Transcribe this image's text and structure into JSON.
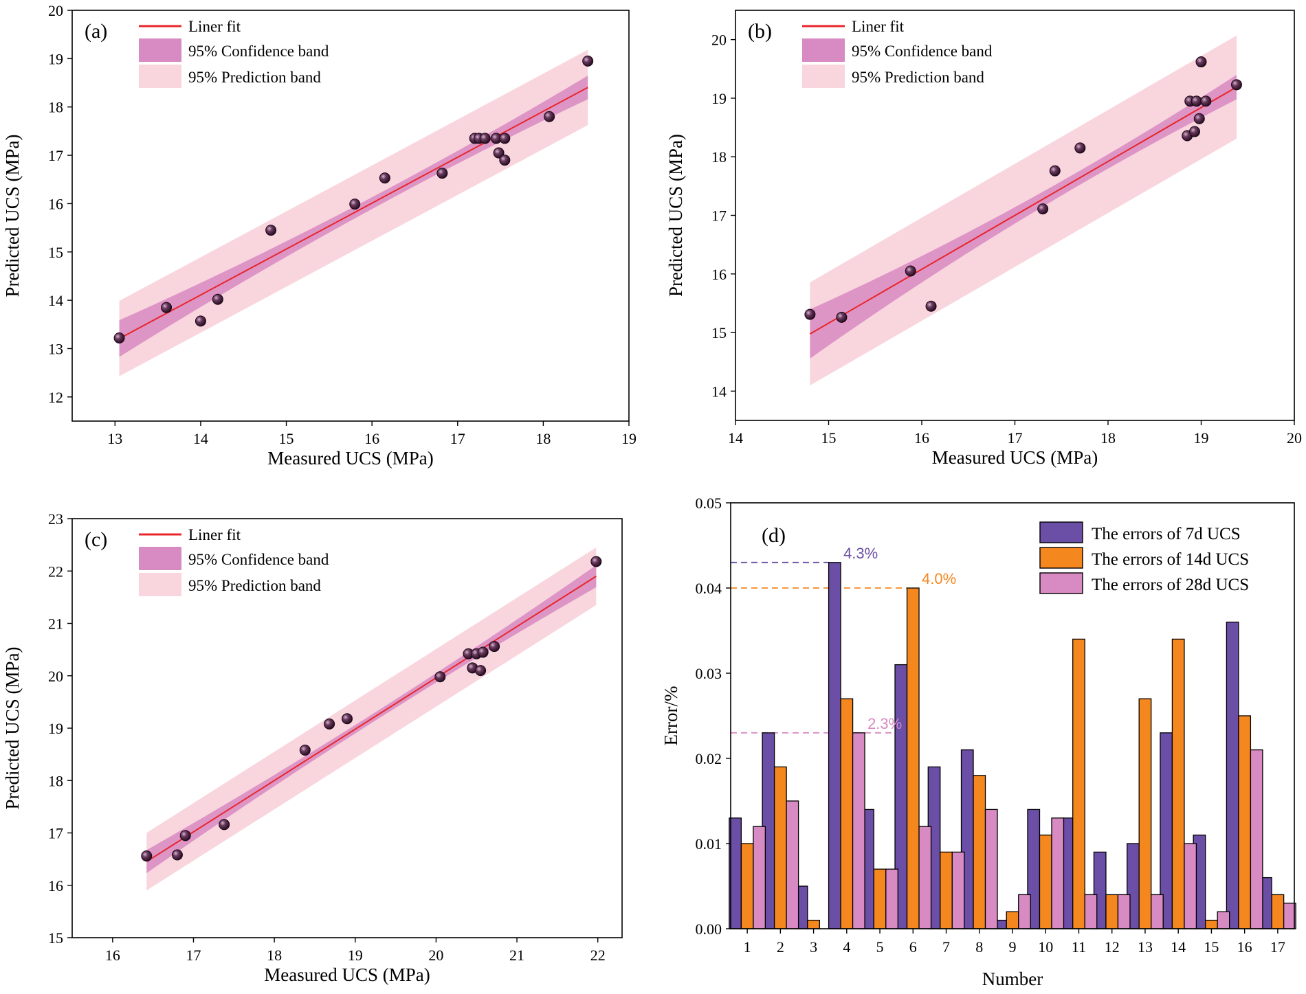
{
  "figure": {
    "colors": {
      "fit_line": "#e8262a",
      "confidence_band": "#d88ac2",
      "prediction_band": "#f9d6de",
      "point_fill": "#2a0f24",
      "bar_7d": "#6b4ea5",
      "bar_14d": "#f5871f",
      "bar_28d": "#d88ac2",
      "annot_7d": "#6b4ea5",
      "annot_14d": "#f5871f",
      "annot_28d": "#d88ac2"
    }
  },
  "chart_data": [
    {
      "id": "a",
      "type": "scatter",
      "label": "(a)",
      "xlabel": "Measured UCS (MPa)",
      "ylabel": "Predicted UCS (MPa)",
      "xlim": [
        12.5,
        19
      ],
      "ylim": [
        11.5,
        20
      ],
      "xticks": [
        13,
        14,
        15,
        16,
        17,
        18,
        19
      ],
      "yticks": [
        12,
        13,
        14,
        15,
        16,
        17,
        18,
        19,
        20
      ],
      "legend": [
        "Liner fit",
        "95% Confidence band",
        "95% Prediction band"
      ],
      "fit": {
        "slope": 0.95,
        "intercept": 0.81,
        "x_range": [
          13.05,
          18.52
        ]
      },
      "confidence_half_width": {
        "at_mean": 0.12,
        "at_ends": 0.38
      },
      "prediction_half_width": 0.78,
      "points": [
        {
          "x": 13.05,
          "y": 13.22
        },
        {
          "x": 13.6,
          "y": 13.85
        },
        {
          "x": 14.0,
          "y": 13.57
        },
        {
          "x": 14.2,
          "y": 14.02
        },
        {
          "x": 14.82,
          "y": 15.45
        },
        {
          "x": 15.8,
          "y": 15.99
        },
        {
          "x": 16.15,
          "y": 16.53
        },
        {
          "x": 16.82,
          "y": 16.63
        },
        {
          "x": 17.2,
          "y": 17.35
        },
        {
          "x": 17.25,
          "y": 17.35
        },
        {
          "x": 17.32,
          "y": 17.35
        },
        {
          "x": 17.45,
          "y": 17.35
        },
        {
          "x": 17.48,
          "y": 17.05
        },
        {
          "x": 17.55,
          "y": 17.35
        },
        {
          "x": 17.55,
          "y": 16.9
        },
        {
          "x": 18.07,
          "y": 17.8
        },
        {
          "x": 18.52,
          "y": 18.95
        }
      ]
    },
    {
      "id": "b",
      "type": "scatter",
      "label": "(b)",
      "xlabel": "Measured UCS (MPa)",
      "ylabel": "Predicted UCS (MPa)",
      "xlim": [
        14,
        20
      ],
      "ylim": [
        13.5,
        20.5
      ],
      "xticks": [
        14,
        15,
        16,
        17,
        18,
        19,
        20
      ],
      "yticks": [
        14,
        15,
        16,
        17,
        18,
        19,
        20
      ],
      "legend": [
        "Liner fit",
        "95% Confidence band",
        "95% Prediction band"
      ],
      "fit": {
        "slope": 0.92,
        "intercept": 1.36,
        "x_range": [
          14.8,
          19.38
        ]
      },
      "confidence_half_width": {
        "at_mean": 0.12,
        "at_ends": 0.42
      },
      "prediction_half_width": 0.88,
      "points": [
        {
          "x": 14.8,
          "y": 15.31
        },
        {
          "x": 15.14,
          "y": 15.26
        },
        {
          "x": 15.88,
          "y": 16.05
        },
        {
          "x": 16.1,
          "y": 15.45
        },
        {
          "x": 17.3,
          "y": 17.11
        },
        {
          "x": 17.43,
          "y": 17.76
        },
        {
          "x": 17.7,
          "y": 18.15
        },
        {
          "x": 18.85,
          "y": 18.36
        },
        {
          "x": 18.88,
          "y": 18.95
        },
        {
          "x": 18.93,
          "y": 18.43
        },
        {
          "x": 18.95,
          "y": 18.95
        },
        {
          "x": 18.98,
          "y": 18.65
        },
        {
          "x": 19.0,
          "y": 19.62
        },
        {
          "x": 19.05,
          "y": 18.95
        },
        {
          "x": 19.38,
          "y": 19.23
        }
      ]
    },
    {
      "id": "c",
      "type": "scatter",
      "label": "(c)",
      "xlabel": "Measured UCS (MPa)",
      "ylabel": "Predicted UCS (MPa)",
      "xlim": [
        15.5,
        22.3
      ],
      "ylim": [
        15,
        23
      ],
      "xticks": [
        16,
        17,
        18,
        19,
        20,
        21,
        22
      ],
      "yticks": [
        15,
        16,
        17,
        18,
        19,
        20,
        21,
        22,
        23
      ],
      "legend": [
        "Liner fit",
        "95% Confidence band",
        "95% Prediction band"
      ],
      "fit": {
        "slope": 0.98,
        "intercept": 0.36,
        "x_range": [
          16.42,
          21.98
        ]
      },
      "confidence_half_width": {
        "at_mean": 0.08,
        "at_ends": 0.22
      },
      "prediction_half_width": 0.55,
      "points": [
        {
          "x": 16.42,
          "y": 16.56
        },
        {
          "x": 16.8,
          "y": 16.58
        },
        {
          "x": 16.9,
          "y": 16.95
        },
        {
          "x": 17.38,
          "y": 17.16
        },
        {
          "x": 18.38,
          "y": 18.58
        },
        {
          "x": 18.68,
          "y": 19.08
        },
        {
          "x": 18.9,
          "y": 19.18
        },
        {
          "x": 20.05,
          "y": 19.98
        },
        {
          "x": 20.4,
          "y": 20.42
        },
        {
          "x": 20.45,
          "y": 20.15
        },
        {
          "x": 20.5,
          "y": 20.42
        },
        {
          "x": 20.55,
          "y": 20.1
        },
        {
          "x": 20.58,
          "y": 20.45
        },
        {
          "x": 20.72,
          "y": 20.56
        },
        {
          "x": 21.98,
          "y": 22.18
        }
      ]
    },
    {
      "id": "d",
      "type": "bar",
      "label": "(d)",
      "xlabel": "Number",
      "ylabel": "Error/%",
      "ylim": [
        0,
        0.05
      ],
      "yticks": [
        "0.00",
        "0.01",
        "0.02",
        "0.03",
        "0.04",
        "0.05"
      ],
      "categories": [
        "1",
        "2",
        "3",
        "4",
        "5",
        "6",
        "7",
        "8",
        "9",
        "10",
        "11",
        "12",
        "13",
        "14",
        "15",
        "16",
        "17"
      ],
      "series": [
        {
          "name": "The errors of 7d UCS",
          "values": [
            0.013,
            0.023,
            0.005,
            0.043,
            0.014,
            0.031,
            0.019,
            0.021,
            0.001,
            0.014,
            0.013,
            0.009,
            0.01,
            0.023,
            0.011,
            0.036,
            0.006
          ]
        },
        {
          "name": "The errors of 14d UCS",
          "values": [
            0.01,
            0.019,
            0.001,
            0.027,
            0.007,
            0.04,
            0.009,
            0.018,
            0.002,
            0.011,
            0.034,
            0.004,
            0.027,
            0.034,
            0.001,
            0.025,
            0.004
          ]
        },
        {
          "name": "The errors of 28d UCS",
          "values": [
            0.012,
            0.015,
            0.0,
            0.023,
            0.007,
            0.012,
            0.009,
            0.014,
            0.004,
            0.013,
            0.004,
            0.004,
            0.004,
            0.01,
            0.002,
            0.021,
            0.003
          ]
        }
      ],
      "annotations": [
        {
          "text": "4.3%",
          "value": 0.043,
          "series": 0,
          "to_category": 3
        },
        {
          "text": "4.0%",
          "value": 0.04,
          "series": 1,
          "to_category": 5
        },
        {
          "text": "2.3%",
          "value": 0.023,
          "series": 2,
          "to_category": 3
        }
      ]
    }
  ]
}
